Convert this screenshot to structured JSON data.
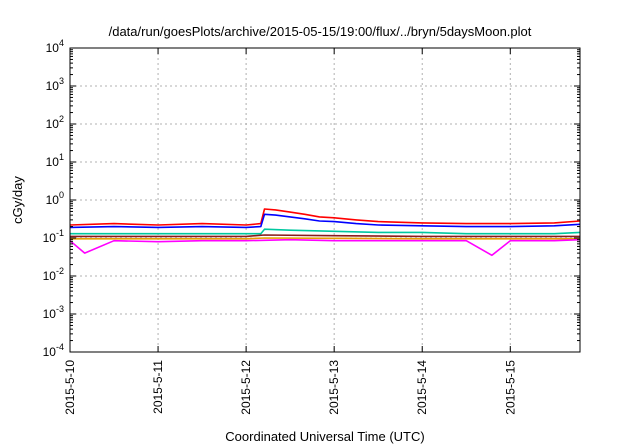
{
  "chart_data": {
    "type": "line",
    "title": "/data/run/goesPlots/archive/2015-05-15/19:00/flux/../bryn/5daysMoon.plot",
    "xlabel": "Coordinated Universal Time (UTC)",
    "ylabel": "cGy/day",
    "yscale": "log",
    "ylim": [
      0.0001,
      10000
    ],
    "xlim": [
      "2015-05-10T00:00",
      "2015-05-15T19:00"
    ],
    "grid": true,
    "legend": "none",
    "y_ticks": [
      {
        "value": 0.0001,
        "base": "10",
        "exp": "-4"
      },
      {
        "value": 0.001,
        "base": "10",
        "exp": "-3"
      },
      {
        "value": 0.01,
        "base": "10",
        "exp": "-2"
      },
      {
        "value": 0.1,
        "base": "10",
        "exp": "-1"
      },
      {
        "value": 1,
        "base": "10",
        "exp": "0"
      },
      {
        "value": 10,
        "base": "10",
        "exp": "1"
      },
      {
        "value": 100,
        "base": "10",
        "exp": "2"
      },
      {
        "value": 1000,
        "base": "10",
        "exp": "3"
      },
      {
        "value": 10000,
        "base": "10",
        "exp": "4"
      }
    ],
    "x_ticks": [
      {
        "value": "2015-05-10T00:00",
        "label": "2015-5-10"
      },
      {
        "value": "2015-05-11T00:00",
        "label": "2015-5-11"
      },
      {
        "value": "2015-05-12T00:00",
        "label": "2015-5-12"
      },
      {
        "value": "2015-05-13T00:00",
        "label": "2015-5-13"
      },
      {
        "value": "2015-05-14T00:00",
        "label": "2015-5-14"
      },
      {
        "value": "2015-05-15T00:00",
        "label": "2015-5-15"
      }
    ],
    "series": [
      {
        "color": "#ff0000",
        "x": [
          "2015-05-10T00:00",
          "2015-05-10T12:00",
          "2015-05-11T00:00",
          "2015-05-11T12:00",
          "2015-05-12T00:00",
          "2015-05-12T04:00",
          "2015-05-12T05:00",
          "2015-05-12T08:00",
          "2015-05-12T12:00",
          "2015-05-12T16:00",
          "2015-05-12T20:00",
          "2015-05-13T00:00",
          "2015-05-13T06:00",
          "2015-05-13T12:00",
          "2015-05-14T00:00",
          "2015-05-14T12:00",
          "2015-05-15T00:00",
          "2015-05-15T12:00",
          "2015-05-15T19:00"
        ],
        "values": [
          0.22,
          0.24,
          0.22,
          0.24,
          0.22,
          0.24,
          0.58,
          0.55,
          0.48,
          0.42,
          0.36,
          0.34,
          0.3,
          0.27,
          0.25,
          0.24,
          0.24,
          0.25,
          0.28
        ]
      },
      {
        "color": "#0000ff",
        "x": [
          "2015-05-10T00:00",
          "2015-05-10T12:00",
          "2015-05-11T00:00",
          "2015-05-11T12:00",
          "2015-05-12T00:00",
          "2015-05-12T04:00",
          "2015-05-12T05:00",
          "2015-05-12T08:00",
          "2015-05-12T12:00",
          "2015-05-12T16:00",
          "2015-05-12T20:00",
          "2015-05-13T00:00",
          "2015-05-13T06:00",
          "2015-05-13T12:00",
          "2015-05-14T00:00",
          "2015-05-14T12:00",
          "2015-05-15T00:00",
          "2015-05-15T12:00",
          "2015-05-15T19:00"
        ],
        "values": [
          0.19,
          0.2,
          0.19,
          0.2,
          0.19,
          0.2,
          0.42,
          0.4,
          0.36,
          0.32,
          0.28,
          0.27,
          0.24,
          0.22,
          0.21,
          0.2,
          0.2,
          0.21,
          0.23
        ]
      },
      {
        "color": "#00c8a0",
        "x": [
          "2015-05-10T00:00",
          "2015-05-10T12:00",
          "2015-05-11T00:00",
          "2015-05-11T12:00",
          "2015-05-12T00:00",
          "2015-05-12T04:00",
          "2015-05-12T05:00",
          "2015-05-12T12:00",
          "2015-05-13T00:00",
          "2015-05-13T12:00",
          "2015-05-14T00:00",
          "2015-05-14T12:00",
          "2015-05-15T00:00",
          "2015-05-15T12:00",
          "2015-05-15T19:00"
        ],
        "values": [
          0.13,
          0.13,
          0.13,
          0.13,
          0.13,
          0.13,
          0.17,
          0.16,
          0.15,
          0.14,
          0.14,
          0.13,
          0.13,
          0.13,
          0.14
        ]
      },
      {
        "color": "#8b1a1a",
        "x": [
          "2015-05-10T00:00",
          "2015-05-11T00:00",
          "2015-05-12T00:00",
          "2015-05-12T05:00",
          "2015-05-13T00:00",
          "2015-05-14T00:00",
          "2015-05-15T00:00",
          "2015-05-15T19:00"
        ],
        "values": [
          0.11,
          0.11,
          0.11,
          0.12,
          0.115,
          0.11,
          0.11,
          0.11
        ]
      },
      {
        "color": "#e6a000",
        "x": [
          "2015-05-10T00:00",
          "2015-05-11T00:00",
          "2015-05-12T00:00",
          "2015-05-12T05:00",
          "2015-05-13T00:00",
          "2015-05-14T00:00",
          "2015-05-15T00:00",
          "2015-05-15T19:00"
        ],
        "values": [
          0.095,
          0.095,
          0.095,
          0.1,
          0.098,
          0.095,
          0.095,
          0.095
        ]
      },
      {
        "color": "#ff00ff",
        "x": [
          "2015-05-10T00:00",
          "2015-05-10T04:00",
          "2015-05-10T12:00",
          "2015-05-11T00:00",
          "2015-05-11T12:00",
          "2015-05-12T00:00",
          "2015-05-12T12:00",
          "2015-05-13T00:00",
          "2015-05-13T12:00",
          "2015-05-14T00:00",
          "2015-05-14T12:00",
          "2015-05-14T19:00",
          "2015-05-15T00:00",
          "2015-05-15T12:00",
          "2015-05-15T19:00"
        ],
        "values": [
          0.085,
          0.04,
          0.085,
          0.08,
          0.085,
          0.085,
          0.09,
          0.085,
          0.085,
          0.085,
          0.085,
          0.035,
          0.085,
          0.085,
          0.09
        ]
      }
    ]
  }
}
